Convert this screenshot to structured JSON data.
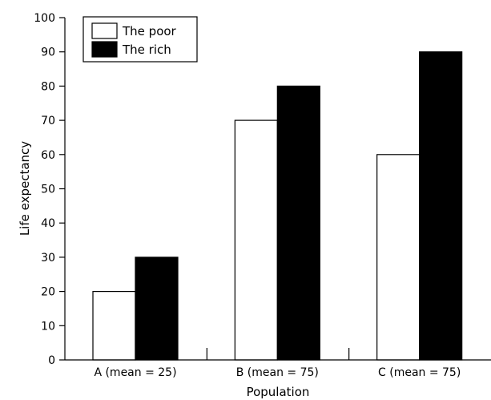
{
  "chart_data": {
    "type": "bar",
    "title": "",
    "xlabel": "Population",
    "ylabel": "Life expectancy",
    "categories": [
      "A (mean = 25)",
      "B (mean = 75)",
      "C (mean = 75)"
    ],
    "series": [
      {
        "name": "The poor",
        "values": [
          20,
          70,
          60
        ],
        "color": "#ffffff"
      },
      {
        "name": "The rich",
        "values": [
          30,
          80,
          90
        ],
        "color": "#000000"
      }
    ],
    "ylim": [
      0,
      100
    ],
    "yticks": [
      "0",
      "10",
      "20",
      "30",
      "40",
      "50",
      "60",
      "70",
      "80",
      "90",
      "100"
    ],
    "grid": false,
    "legend_position": "top-left"
  }
}
